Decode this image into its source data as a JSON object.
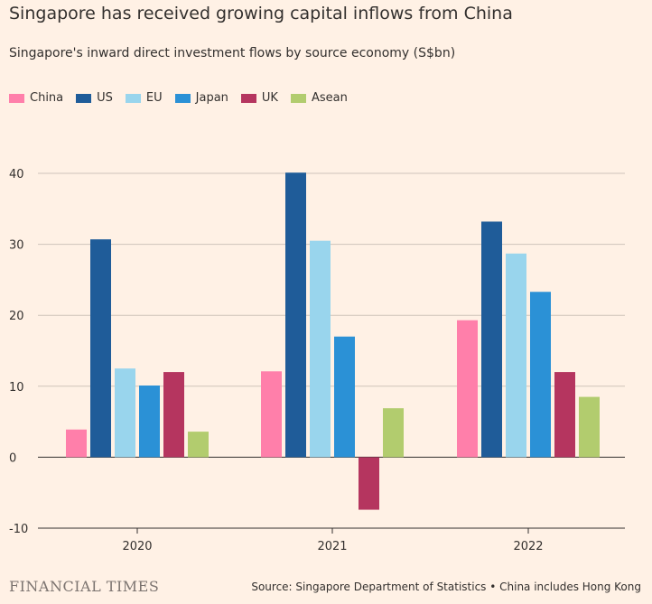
{
  "title": "Singapore has received growing capital inflows from China",
  "subtitle": "Singapore's inward direct investment flows by source economy (S$bn)",
  "brand": "FINANCIAL TIMES",
  "source": "Source: Singapore Department of Statistics • China includes Hong Kong",
  "chart_data": {
    "type": "bar",
    "title": "Singapore has received growing capital inflows from China",
    "ylabel": "S$bn",
    "ylim": [
      -10,
      40
    ],
    "yticks": [
      -10,
      0,
      10,
      20,
      30,
      40
    ],
    "categories": [
      "2020",
      "2021",
      "2022"
    ],
    "series": [
      {
        "name": "China",
        "color": "#ff7faa",
        "values": [
          3.9,
          12.1,
          19.3
        ]
      },
      {
        "name": "US",
        "color": "#1f5c99",
        "values": [
          30.7,
          40.1,
          33.2
        ]
      },
      {
        "name": "EU",
        "color": "#99d5ed",
        "values": [
          12.5,
          30.5,
          28.7
        ]
      },
      {
        "name": "Japan",
        "color": "#2b91d6",
        "values": [
          10.1,
          17.0,
          23.3
        ]
      },
      {
        "name": "UK",
        "color": "#b5355f",
        "values": [
          12.0,
          -7.4,
          12.0
        ]
      },
      {
        "name": "Asean",
        "color": "#b2cc6e",
        "values": [
          3.6,
          6.9,
          8.5
        ]
      }
    ],
    "legend_position": "top-left",
    "grid": true
  }
}
